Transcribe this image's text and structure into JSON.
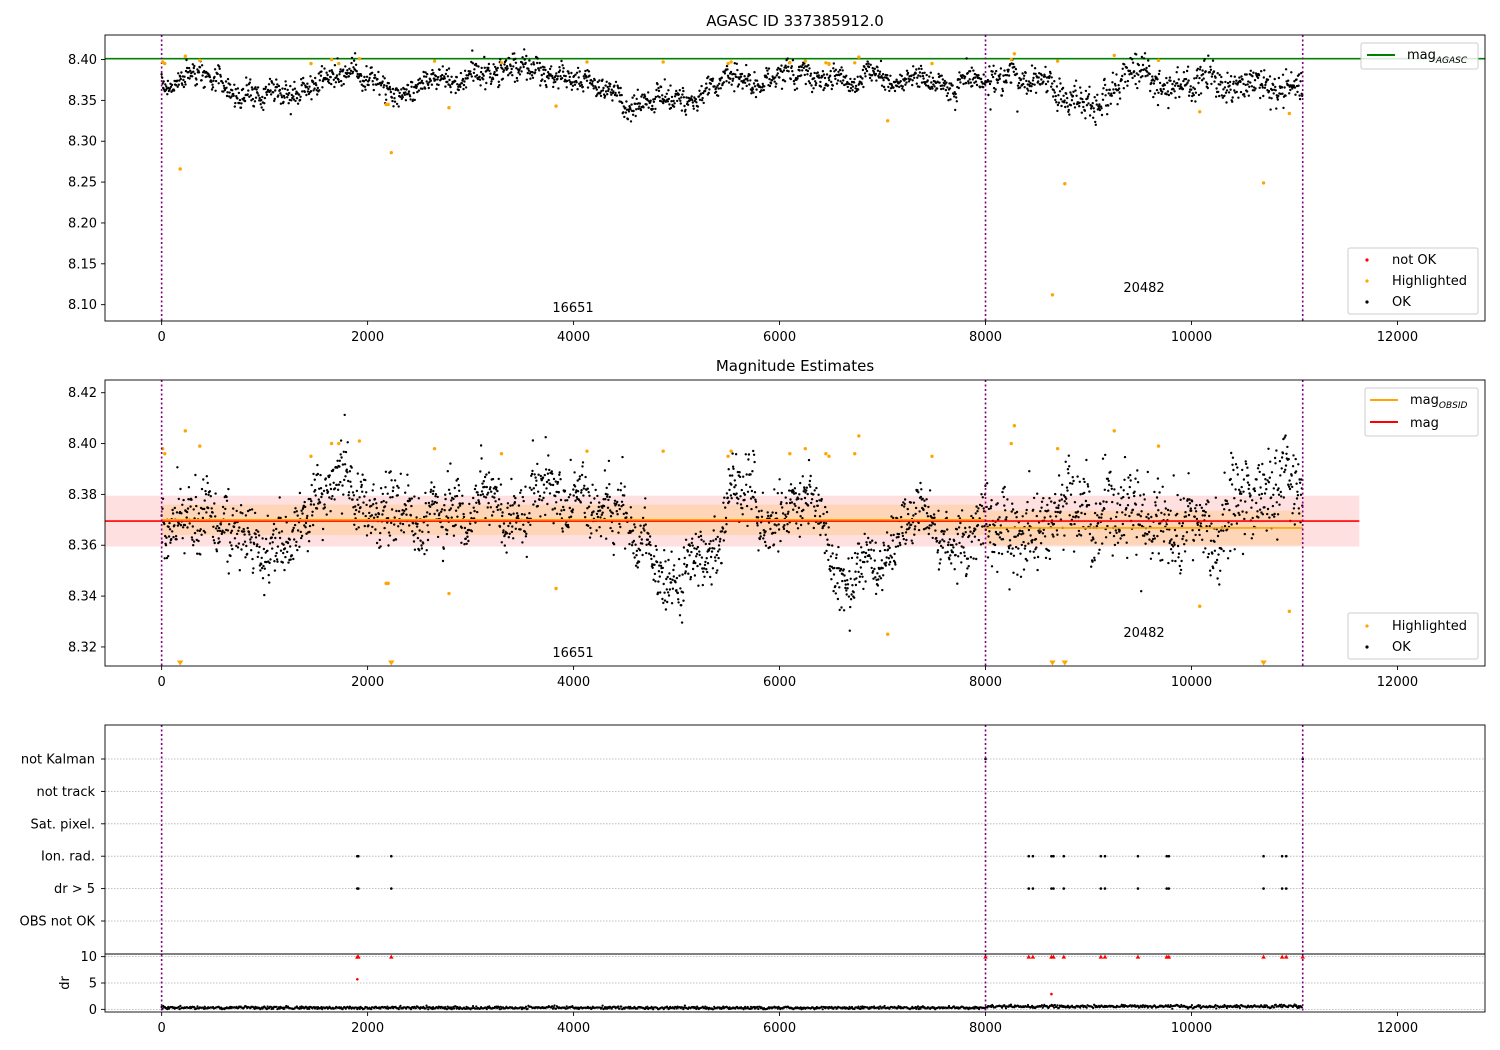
{
  "chart_data": [
    {
      "type": "scatter",
      "title": "AGASC ID 337385912.0",
      "xlim": [
        -550,
        12850
      ],
      "ylim": [
        8.08,
        8.43
      ],
      "x_ticks": [
        0,
        2000,
        4000,
        6000,
        8000,
        10000,
        12000
      ],
      "y_ticks": [
        8.1,
        8.15,
        8.2,
        8.25,
        8.3,
        8.35,
        8.4
      ],
      "grid": false,
      "obsid_boundaries": [
        0,
        8000,
        11080
      ],
      "obsid_labels": [
        {
          "label": "16651",
          "x": 4000,
          "y": 8.098
        },
        {
          "label": "20482",
          "x": 9300,
          "y": 8.123
        }
      ],
      "reference_lines": [
        {
          "name": "mag_AGASC",
          "label_main": "mag",
          "label_sub": "AGASC",
          "y": 8.401,
          "color": "#008000"
        }
      ],
      "ok_band": {
        "x_range": [
          0,
          11080
        ],
        "center": 8.371,
        "spread": 0.013
      },
      "series": [
        {
          "name": "not OK",
          "color": "#ff0000",
          "x": [],
          "y": []
        },
        {
          "name": "Highlighted",
          "color": "#ffa500",
          "x": [
            10,
            30,
            180,
            230,
            370,
            1450,
            1650,
            1720,
            1920,
            2180,
            2200,
            2230,
            2650,
            2790,
            3300,
            3830,
            4130,
            4870,
            5500,
            5530,
            6100,
            6250,
            6450,
            6480,
            6480,
            6730,
            6770,
            7050,
            7480,
            8250,
            8280,
            8650,
            8700,
            8770,
            9250,
            9680,
            10080,
            10700,
            10950
          ],
          "y": [
            8.397,
            8.395,
            8.266,
            8.404,
            8.399,
            8.395,
            8.4,
            8.395,
            8.401,
            8.345,
            8.345,
            8.286,
            8.398,
            8.341,
            8.396,
            8.343,
            8.397,
            8.397,
            8.395,
            8.397,
            8.396,
            8.398,
            8.396,
            8.395,
            8.394,
            8.396,
            8.403,
            8.325,
            8.395,
            8.4,
            8.407,
            8.112,
            8.398,
            8.248,
            8.405,
            8.399,
            8.336,
            8.249,
            8.334
          ]
        },
        {
          "name": "OK",
          "color": "#000000",
          "x": [],
          "y": []
        }
      ],
      "legends": [
        {
          "position": "upper-right",
          "entries": [
            "mag_AGASC"
          ]
        },
        {
          "position": "lower-right",
          "entries": [
            "not OK",
            "Highlighted",
            "OK"
          ]
        }
      ]
    },
    {
      "type": "scatter",
      "title": "Magnitude Estimates",
      "xlim": [
        -550,
        12850
      ],
      "ylim": [
        8.3125,
        8.425
      ],
      "x_ticks": [
        0,
        2000,
        4000,
        6000,
        8000,
        10000,
        12000
      ],
      "y_ticks": [
        8.32,
        8.34,
        8.36,
        8.38,
        8.4,
        8.42
      ],
      "grid": false,
      "obsid_boundaries": [
        0,
        8000,
        11080
      ],
      "obsid_labels": [
        {
          "label": "16651",
          "x": 4000,
          "y": 8.316
        },
        {
          "label": "20482",
          "x": 9300,
          "y": 8.3245
        }
      ],
      "reference_lines": [
        {
          "name": "mag",
          "y": 8.3695,
          "x_range": [
            -550,
            11630
          ],
          "color": "#ff0000",
          "band": [
            8.3595,
            8.3795
          ]
        },
        {
          "name": "mag_OBSID",
          "label_main": "mag",
          "label_sub": "OBSID",
          "color": "#ffa500",
          "segments": [
            {
              "x_range": [
                0,
                8000
              ],
              "y": 8.37,
              "band": [
                8.364,
                8.376
              ]
            },
            {
              "x_range": [
                8000,
                11080
              ],
              "y": 8.3668,
              "band": [
                8.36,
                8.3736
              ]
            }
          ]
        }
      ],
      "ok_band": {
        "x_range": [
          0,
          11080
        ],
        "center": 8.369,
        "spread": 0.0105
      },
      "series": [
        {
          "name": "Highlighted",
          "color": "#ffa500",
          "x": [
            10,
            30,
            230,
            370,
            1450,
            1650,
            1720,
            1920,
            2180,
            2200,
            2650,
            2790,
            3300,
            3830,
            4130,
            4870,
            5500,
            5530,
            6100,
            6250,
            6450,
            6480,
            6730,
            6770,
            7050,
            7480,
            8250,
            8280,
            8700,
            9250,
            9680,
            10080,
            10950
          ],
          "y": [
            8.398,
            8.396,
            8.405,
            8.399,
            8.395,
            8.4,
            8.4,
            8.401,
            8.345,
            8.345,
            8.398,
            8.341,
            8.396,
            8.343,
            8.397,
            8.397,
            8.395,
            8.397,
            8.396,
            8.398,
            8.396,
            8.395,
            8.396,
            8.403,
            8.325,
            8.395,
            8.4,
            8.407,
            8.398,
            8.405,
            8.399,
            8.336,
            8.334
          ]
        },
        {
          "name": "Highlighted (off-scale)",
          "color": "#ffa500",
          "x": [
            180,
            2230,
            8650,
            8770,
            10700
          ],
          "y": [
            8.3125,
            8.3125,
            8.3125,
            8.3125,
            8.3125
          ]
        },
        {
          "name": "OK",
          "color": "#000000",
          "x": [],
          "y": []
        }
      ],
      "legends": [
        {
          "position": "upper-right",
          "entries": [
            "mag_OBSID",
            "mag"
          ]
        },
        {
          "position": "lower-right",
          "entries": [
            "Highlighted",
            "OK"
          ]
        }
      ]
    },
    {
      "type": "scatter",
      "title": "",
      "xlim": [
        -550,
        12850
      ],
      "ylabel": "dr",
      "x_ticks": [
        0,
        2000,
        4000,
        6000,
        8000,
        10000,
        12000
      ],
      "dr_ticks": [
        0,
        5,
        10
      ],
      "dr_lim": [
        -0.5,
        10.5
      ],
      "obsid_boundaries": [
        0,
        8000,
        11080
      ],
      "flag_rows": [
        "not Kalman",
        "not track",
        "Sat. pixel.",
        "Ion. rad.",
        "dr > 5",
        "OBS not OK"
      ],
      "flag_points": {
        "not Kalman": [
          8000,
          11080
        ],
        "Ion. rad.": [
          1900,
          1910,
          2230,
          8420,
          8460,
          8640,
          8660,
          8760,
          9120,
          9160,
          9480,
          9760,
          9780,
          10700,
          10880,
          10920
        ],
        "dr > 5": [
          1900,
          1910,
          2230,
          8420,
          8460,
          8640,
          8660,
          8760,
          9120,
          9160,
          9480,
          9760,
          9780,
          10700,
          10880,
          10920
        ]
      },
      "dr_flagged_points": {
        "x": [
          1900,
          1910,
          2230,
          8000,
          8420,
          8460,
          8640,
          8660,
          8760,
          9120,
          9160,
          9480,
          9760,
          9780,
          10700,
          10880,
          10920,
          11080,
          1900,
          8640
        ],
        "y": [
          10,
          10,
          10,
          10,
          10,
          10,
          10,
          10,
          10,
          10,
          10,
          10,
          10,
          10,
          10,
          10,
          10,
          10,
          5.7,
          2.9
        ]
      }
    }
  ]
}
